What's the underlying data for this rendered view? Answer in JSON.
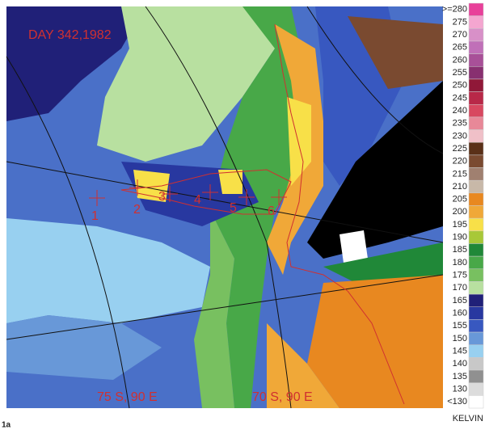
{
  "title": "DAY 342,1982",
  "site_labels": [
    "1",
    "2",
    "3",
    "4",
    "5",
    "6"
  ],
  "grid_labels": [
    "75 S, 90 E",
    "70 S, 90 E"
  ],
  "legend": {
    "unit": "KELVIN",
    "entries": [
      {
        "label": ">=280",
        "color": "#e8409a"
      },
      {
        "label": "275",
        "color": "#f4a6d0"
      },
      {
        "label": "270",
        "color": "#d890c8"
      },
      {
        "label": "265",
        "color": "#c070b8"
      },
      {
        "label": "260",
        "color": "#a85098"
      },
      {
        "label": "255",
        "color": "#883070"
      },
      {
        "label": "250",
        "color": "#901838"
      },
      {
        "label": "245",
        "color": "#b82848"
      },
      {
        "label": "240",
        "color": "#d84860"
      },
      {
        "label": "235",
        "color": "#e88898"
      },
      {
        "label": "230",
        "color": "#f0c0c8"
      },
      {
        "label": "225",
        "color": "#5a3018"
      },
      {
        "label": "220",
        "color": "#7a4a30"
      },
      {
        "label": "215",
        "color": "#a08070"
      },
      {
        "label": "210",
        "color": "#c8b8a8"
      },
      {
        "label": "205",
        "color": "#e88820"
      },
      {
        "label": "200",
        "color": "#f0a838"
      },
      {
        "label": "195",
        "color": "#f8e048"
      },
      {
        "label": "190",
        "color": "#a8c838"
      },
      {
        "label": "185",
        "color": "#208838"
      },
      {
        "label": "180",
        "color": "#48a848"
      },
      {
        "label": "175",
        "color": "#78c060"
      },
      {
        "label": "170",
        "color": "#b8e0a0"
      },
      {
        "label": "165",
        "color": "#202078"
      },
      {
        "label": "160",
        "color": "#2838a0"
      },
      {
        "label": "155",
        "color": "#3858c0"
      },
      {
        "label": "150",
        "color": "#6898d8"
      },
      {
        "label": "145",
        "color": "#98d0f0"
      },
      {
        "label": "140",
        "color": "#c8c8c8"
      },
      {
        "label": "135",
        "color": "#909090"
      },
      {
        "label": "130",
        "color": "#dcdcdc"
      },
      {
        "label": "<130",
        "color": "#ffffff"
      }
    ]
  },
  "figure_label": "1a"
}
